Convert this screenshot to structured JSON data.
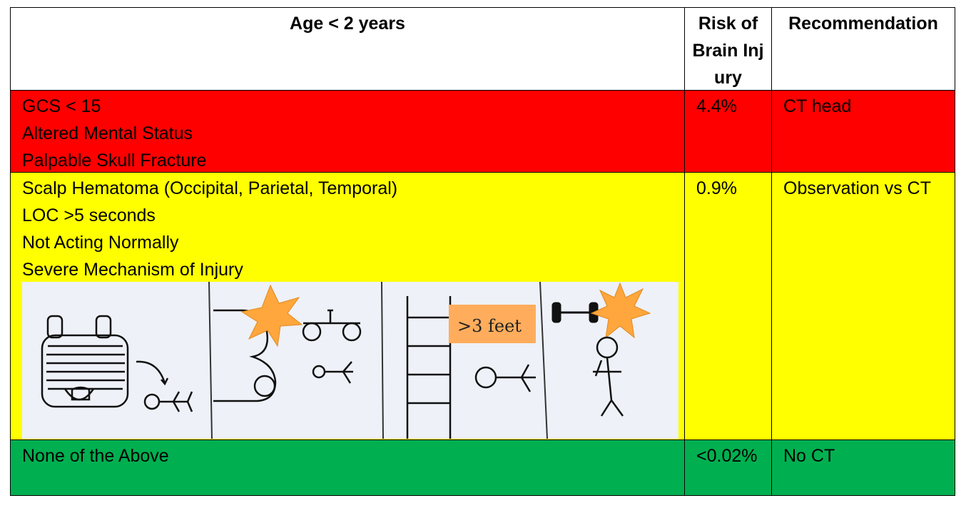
{
  "header": {
    "criteria": "Age < 2 years",
    "risk": "Risk of Brain Injury",
    "recommendation": "Recommendation"
  },
  "rows": [
    {
      "color": "#ff0000",
      "criteria": [
        "GCS < 15",
        "Altered Mental Status",
        "Palpable Skull Fracture"
      ],
      "risk": "4.4%",
      "recommendation": "CT head"
    },
    {
      "color": "#ffff00",
      "criteria": [
        "Scalp Hematoma (Occipital, Parietal, Temporal)",
        "LOC >5 seconds",
        "Not Acting Normally",
        "Severe Mechanism of Injury"
      ],
      "risk": "0.9%",
      "recommendation": "Observation vs CT",
      "illustration_label": ">3 feet"
    },
    {
      "color": "#00b050",
      "criteria": [
        "None of the Above"
      ],
      "risk": "<0.02%",
      "recommendation": "No CT"
    }
  ]
}
